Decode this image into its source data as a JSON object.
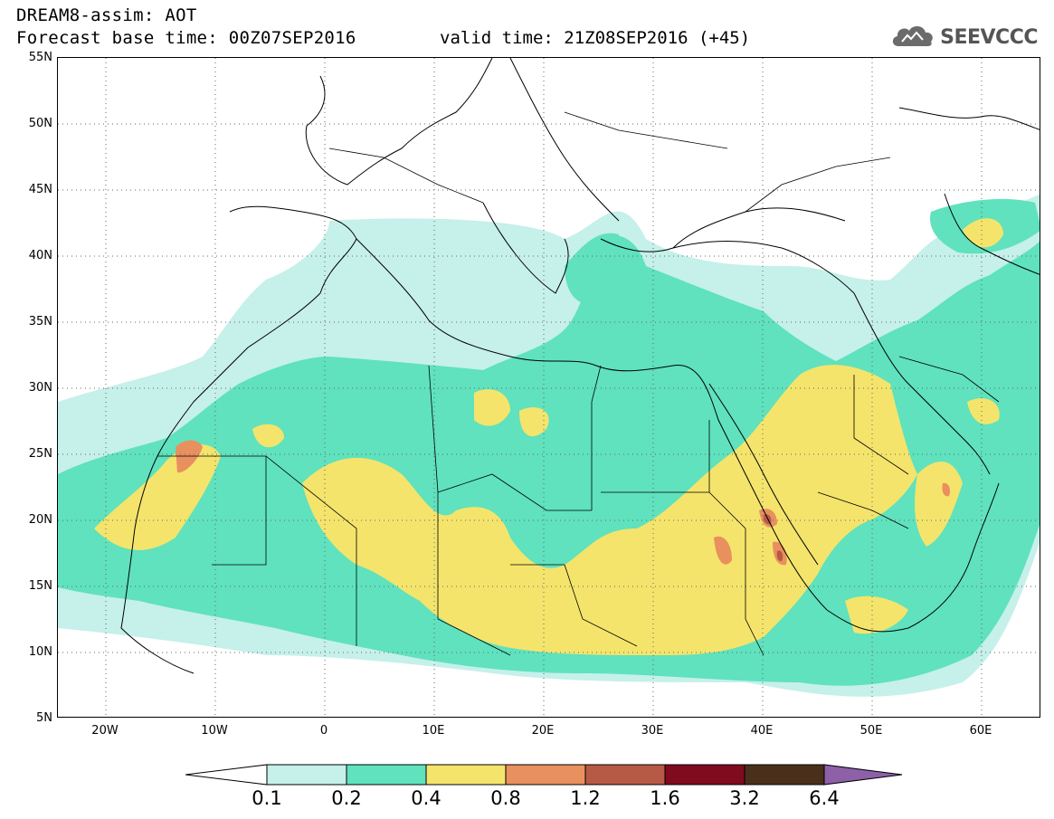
{
  "title": {
    "line1": "DREAM8-assim: AOT",
    "line2_left": "Forecast base time: 00Z07SEP2016",
    "line2_right": "valid time: 21Z08SEP2016 (+45)"
  },
  "logo": {
    "text": "SEEVCCC",
    "icon": "cloud-icon"
  },
  "map": {
    "lat_labels": [
      "55N",
      "50N",
      "45N",
      "40N",
      "35N",
      "30N",
      "25N",
      "20N",
      "15N",
      "10N",
      "5N"
    ],
    "lon_labels": [
      "20W",
      "10W",
      "0",
      "10E",
      "20E",
      "30E",
      "40E",
      "50E",
      "60E"
    ],
    "extent": {
      "lon": [
        -25,
        65
      ],
      "lat": [
        5,
        55
      ]
    },
    "gridlines": "dotted"
  },
  "colorbar": {
    "labels": [
      "0.1",
      "0.2",
      "0.4",
      "0.8",
      "1.2",
      "1.6",
      "3.2",
      "6.4"
    ],
    "colors": [
      "#c6f0ea",
      "#5fe2bd",
      "#f4e46c",
      "#e9905f",
      "#b75a45",
      "#800a1e",
      "#4a2f1a"
    ],
    "extend_max_color": "#8e60a8"
  }
}
